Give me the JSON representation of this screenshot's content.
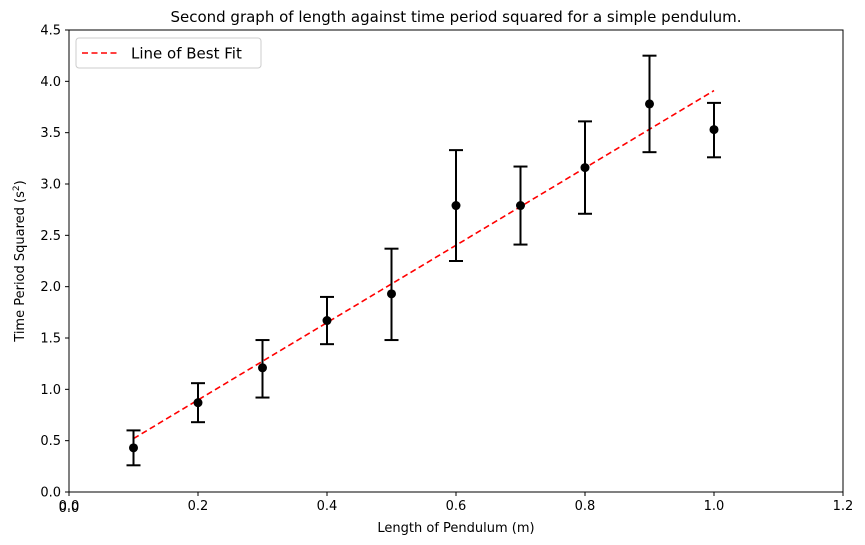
{
  "chart_data": {
    "type": "scatter",
    "title": "Second graph of length against time period squared for a simple pendulum.",
    "xlabel": "Length of Pendulum (m)",
    "ylabel_main": "Time Period Squared (s",
    "ylabel_sup": "2",
    "ylabel_close": ")",
    "xlim": [
      0,
      1.2
    ],
    "ylim": [
      0,
      4.5
    ],
    "xticks": [
      "0.0",
      "0.2",
      "0.4",
      "0.6",
      "0.8",
      "1.0",
      "1.2"
    ],
    "xtick_values": [
      0,
      0.2,
      0.4,
      0.6,
      0.8,
      1.0,
      1.2
    ],
    "yticks": [
      "0.0",
      "0.5",
      "1.0",
      "1.5",
      "2.0",
      "2.5",
      "3.0",
      "3.5",
      "4.0",
      "4.5"
    ],
    "ytick_values": [
      0,
      0.5,
      1.0,
      1.5,
      2.0,
      2.5,
      3.0,
      3.5,
      4.0,
      4.5
    ],
    "origin_duplicate_label": "0.0",
    "grid": false,
    "legend_position": "top-left",
    "points": [
      {
        "x": 0.1,
        "y": 0.43,
        "y_low": 0.26,
        "y_high": 0.6
      },
      {
        "x": 0.2,
        "y": 0.87,
        "y_low": 0.68,
        "y_high": 1.06
      },
      {
        "x": 0.3,
        "y": 1.21,
        "y_low": 0.92,
        "y_high": 1.48
      },
      {
        "x": 0.4,
        "y": 1.67,
        "y_low": 1.44,
        "y_high": 1.9
      },
      {
        "x": 0.5,
        "y": 1.93,
        "y_low": 1.48,
        "y_high": 2.37
      },
      {
        "x": 0.6,
        "y": 2.79,
        "y_low": 2.25,
        "y_high": 3.33
      },
      {
        "x": 0.7,
        "y": 2.79,
        "y_low": 2.41,
        "y_high": 3.17
      },
      {
        "x": 0.8,
        "y": 3.16,
        "y_low": 2.71,
        "y_high": 3.61
      },
      {
        "x": 0.9,
        "y": 3.78,
        "y_low": 3.31,
        "y_high": 4.25
      },
      {
        "x": 1.0,
        "y": 3.53,
        "y_low": 3.26,
        "y_high": 3.79
      }
    ],
    "best_fit": {
      "name": "Line of Best Fit",
      "x": [
        0.1,
        1.0
      ],
      "y": [
        0.52,
        3.91
      ],
      "color": "#ff0000",
      "style": "dashed"
    },
    "marker_color": "#000000"
  }
}
